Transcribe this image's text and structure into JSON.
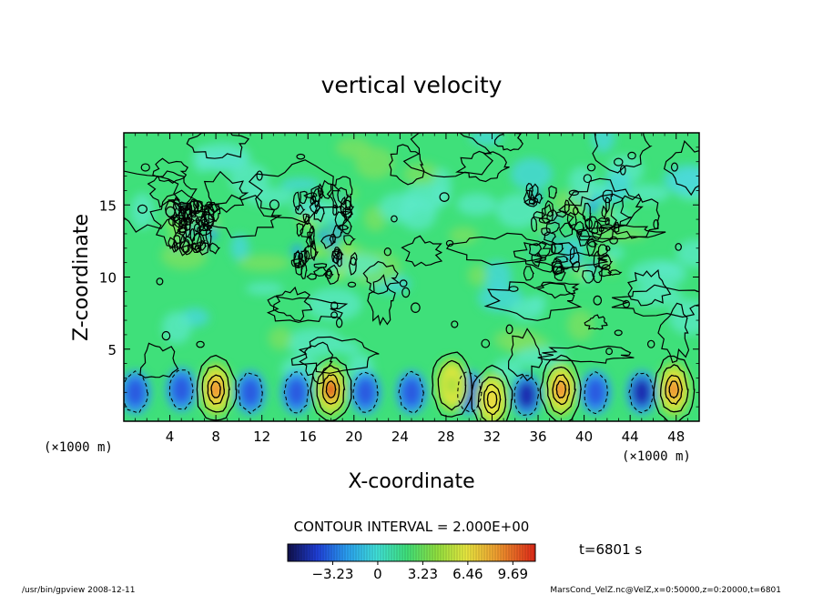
{
  "chart_data": {
    "type": "heatmap",
    "title": "vertical velocity",
    "xlabel": "X-coordinate",
    "ylabel": "Z-coordinate",
    "x_unit_left": "(×1000 m)",
    "x_unit_right": "(×1000 m)",
    "xlim": [
      0,
      50
    ],
    "ylim": [
      0,
      20
    ],
    "x_ticks": [
      "4",
      "8",
      "12",
      "16",
      "20",
      "24",
      "28",
      "32",
      "36",
      "40",
      "44",
      "48"
    ],
    "x_tick_values": [
      4,
      8,
      12,
      16,
      20,
      24,
      28,
      32,
      36,
      40,
      44,
      48
    ],
    "y_ticks": [
      "5",
      "10",
      "15"
    ],
    "y_tick_values": [
      5,
      10,
      15
    ],
    "contour_interval_text": "CONTOUR INTERVAL = 2.000E+00",
    "time_text": "t=6801 s",
    "colorbar": {
      "labels": [
        "−3.23",
        "0",
        "3.23",
        "6.46",
        "9.69"
      ],
      "values": [
        -3.23,
        0,
        3.23,
        6.46,
        9.69
      ],
      "range": [
        -6.46,
        11.3
      ]
    },
    "updrafts": [
      {
        "x": 8,
        "z": 2.2,
        "peak": 6.5
      },
      {
        "x": 18,
        "z": 2.2,
        "peak": 11.0
      },
      {
        "x": 28.5,
        "z": 2.5,
        "peak": 3.5
      },
      {
        "x": 32,
        "z": 1.5,
        "peak": 5.5
      },
      {
        "x": 38,
        "z": 2.2,
        "peak": 7.0
      },
      {
        "x": 47.8,
        "z": 2.2,
        "peak": 9.0
      }
    ],
    "downdrafts": [
      {
        "x": 1,
        "z": 2,
        "peak": -3.5
      },
      {
        "x": 5,
        "z": 2.2,
        "peak": -3.5
      },
      {
        "x": 11,
        "z": 2,
        "peak": -3.0
      },
      {
        "x": 15,
        "z": 2,
        "peak": -3.5
      },
      {
        "x": 21,
        "z": 2,
        "peak": -3.0
      },
      {
        "x": 25,
        "z": 2,
        "peak": -2.0
      },
      {
        "x": 30,
        "z": 2,
        "peak": -3.0
      },
      {
        "x": 35,
        "z": 1.8,
        "peak": -4.5
      },
      {
        "x": 41,
        "z": 2,
        "peak": -3.5
      },
      {
        "x": 45,
        "z": 2,
        "peak": -4.5
      }
    ],
    "turbulent_bands": [
      {
        "x": [
          4,
          8
        ],
        "z": [
          12,
          15
        ]
      },
      {
        "x": [
          15,
          20
        ],
        "z": [
          10,
          16
        ]
      },
      {
        "x": [
          35,
          43
        ],
        "z": [
          10,
          16
        ]
      }
    ]
  },
  "footer": {
    "left": "/usr/bin/gpview   2008-12-11",
    "right": "MarsCond_VelZ.nc@VelZ,x=0:50000,z=0:20000,t=6801"
  }
}
